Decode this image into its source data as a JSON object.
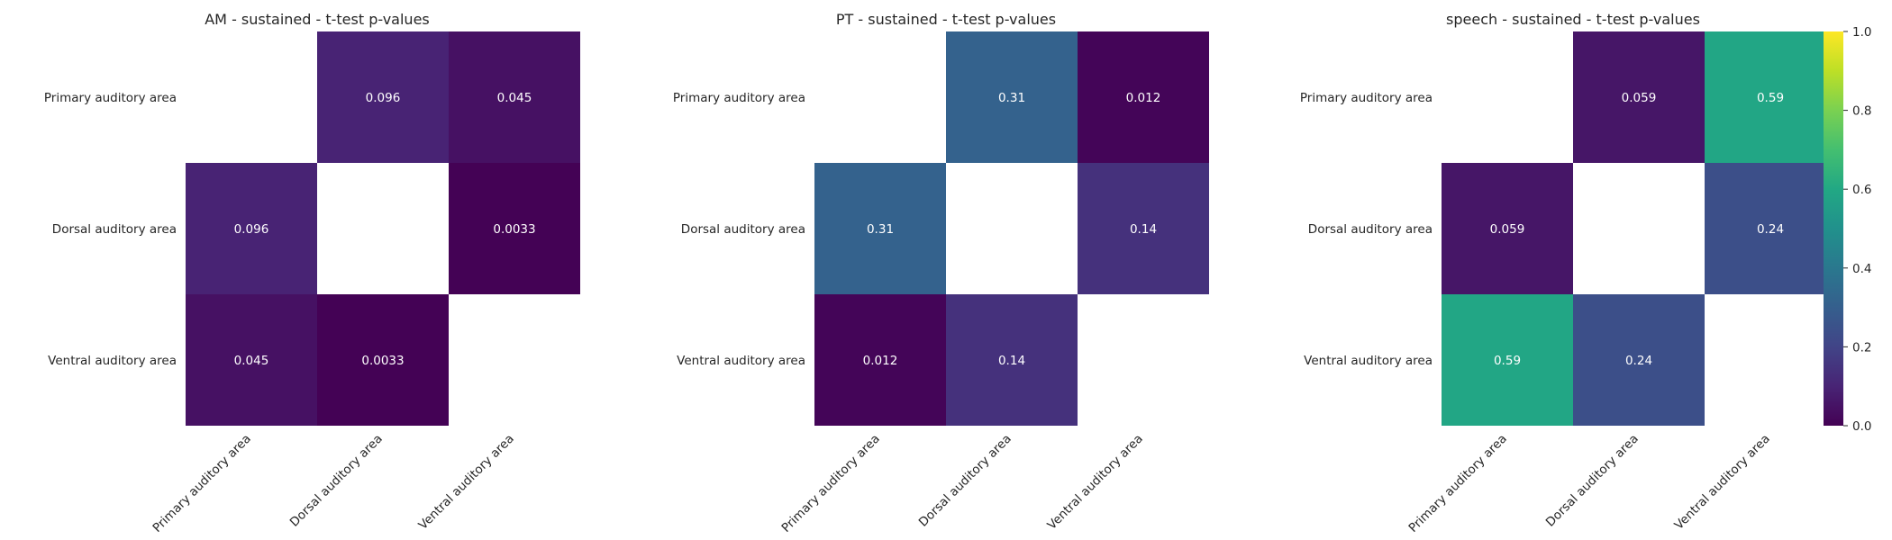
{
  "chart_data": [
    {
      "type": "heatmap",
      "title": "AM - sustained - t-test p-values",
      "x_categories": [
        "Primary auditory area",
        "Dorsal auditory area",
        "Ventral auditory area"
      ],
      "y_categories": [
        "Primary auditory area",
        "Dorsal auditory area",
        "Ventral auditory area"
      ],
      "values": [
        [
          null,
          0.096,
          0.045
        ],
        [
          0.096,
          null,
          0.0033
        ],
        [
          0.045,
          0.0033,
          null
        ]
      ],
      "value_labels": [
        [
          "",
          "0.096",
          "0.045"
        ],
        [
          "0.096",
          "",
          "0.0033"
        ],
        [
          "0.045",
          "0.0033",
          ""
        ]
      ],
      "colormap": "viridis",
      "vmin": 0,
      "vmax": 1,
      "diagonal": "masked"
    },
    {
      "type": "heatmap",
      "title": "PT - sustained - t-test p-values",
      "x_categories": [
        "Primary auditory area",
        "Dorsal auditory area",
        "Ventral auditory area"
      ],
      "y_categories": [
        "Primary auditory area",
        "Dorsal auditory area",
        "Ventral auditory area"
      ],
      "values": [
        [
          null,
          0.31,
          0.012
        ],
        [
          0.31,
          null,
          0.14
        ],
        [
          0.012,
          0.14,
          null
        ]
      ],
      "value_labels": [
        [
          "",
          "0.31",
          "0.012"
        ],
        [
          "0.31",
          "",
          "0.14"
        ],
        [
          "0.012",
          "0.14",
          ""
        ]
      ],
      "colormap": "viridis",
      "vmin": 0,
      "vmax": 1,
      "diagonal": "masked"
    },
    {
      "type": "heatmap",
      "title": "speech - sustained - t-test p-values",
      "x_categories": [
        "Primary auditory area",
        "Dorsal auditory area",
        "Ventral auditory area"
      ],
      "y_categories": [
        "Primary auditory area",
        "Dorsal auditory area",
        "Ventral auditory area"
      ],
      "values": [
        [
          null,
          0.059,
          0.59
        ],
        [
          0.059,
          null,
          0.24
        ],
        [
          0.59,
          0.24,
          null
        ]
      ],
      "value_labels": [
        [
          "",
          "0.059",
          "0.59"
        ],
        [
          "0.059",
          "",
          "0.24"
        ],
        [
          "0.59",
          "0.24",
          ""
        ]
      ],
      "colormap": "viridis",
      "vmin": 0,
      "vmax": 1,
      "diagonal": "masked"
    }
  ],
  "colorbar": {
    "ticks": [
      0.0,
      0.2,
      0.4,
      0.6,
      0.8,
      1.0
    ],
    "tick_labels": [
      "0.0",
      "0.2",
      "0.4",
      "0.6",
      "0.8",
      "1.0"
    ],
    "colormap": "viridis"
  }
}
